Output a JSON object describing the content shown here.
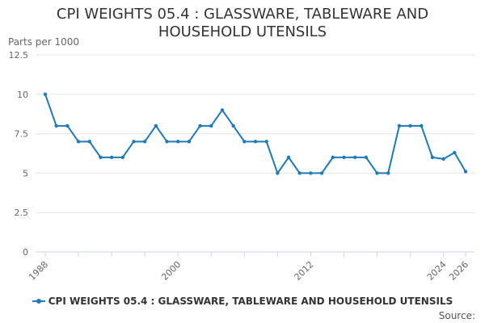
{
  "title": "CPI WEIGHTS 05.4 : GLASSWARE, TABLEWARE AND HOUSEHOLD UTENSILS",
  "source_label": "Source:",
  "colors": {
    "series": "#1f7ab5",
    "grid": "#e6e6e6",
    "axis": "#ccd6eb",
    "text": "#333333",
    "tick_text": "#666666"
  },
  "chart_data": {
    "type": "line",
    "title": "CPI WEIGHTS 05.4 : GLASSWARE, TABLEWARE AND HOUSEHOLD UTENSILS",
    "ylabel": "Parts per 1000",
    "xlabel": "",
    "ylim": [
      0,
      12.5
    ],
    "xlim": [
      1988,
      2026
    ],
    "yticks": [
      0,
      2.5,
      5,
      7.5,
      10,
      12.5
    ],
    "ytick_labels": [
      "0",
      "2.5",
      "5",
      "7.5",
      "10",
      "12.5"
    ],
    "xtick_labels": [
      {
        "value": 1988,
        "label": "1988"
      },
      {
        "value": 2000,
        "label": "2000"
      },
      {
        "value": 2012,
        "label": "2012"
      },
      {
        "value": 2024,
        "label": "2024"
      },
      {
        "value": 2026,
        "label": "2026"
      }
    ],
    "grid": true,
    "legend_position": "bottom",
    "x": [
      1988,
      1989,
      1990,
      1991,
      1992,
      1993,
      1994,
      1995,
      1996,
      1997,
      1998,
      1999,
      2000,
      2001,
      2002,
      2003,
      2004,
      2005,
      2006,
      2007,
      2008,
      2009,
      2010,
      2011,
      2012,
      2013,
      2014,
      2015,
      2016,
      2017,
      2018,
      2019,
      2020,
      2021,
      2022,
      2023,
      2024,
      2025,
      2026
    ],
    "series": [
      {
        "name": "CPI WEIGHTS 05.4 : GLASSWARE, TABLEWARE AND HOUSEHOLD UTENSILS",
        "values": [
          10,
          8,
          8,
          7,
          7,
          6,
          6,
          6,
          7,
          7,
          8,
          7,
          7,
          7,
          8,
          8,
          9,
          8,
          7,
          7,
          7,
          5,
          6,
          5,
          5,
          5,
          6,
          6,
          6,
          6,
          5,
          5,
          8,
          8,
          8,
          6,
          5.9,
          6.3,
          5.1
        ]
      }
    ]
  }
}
